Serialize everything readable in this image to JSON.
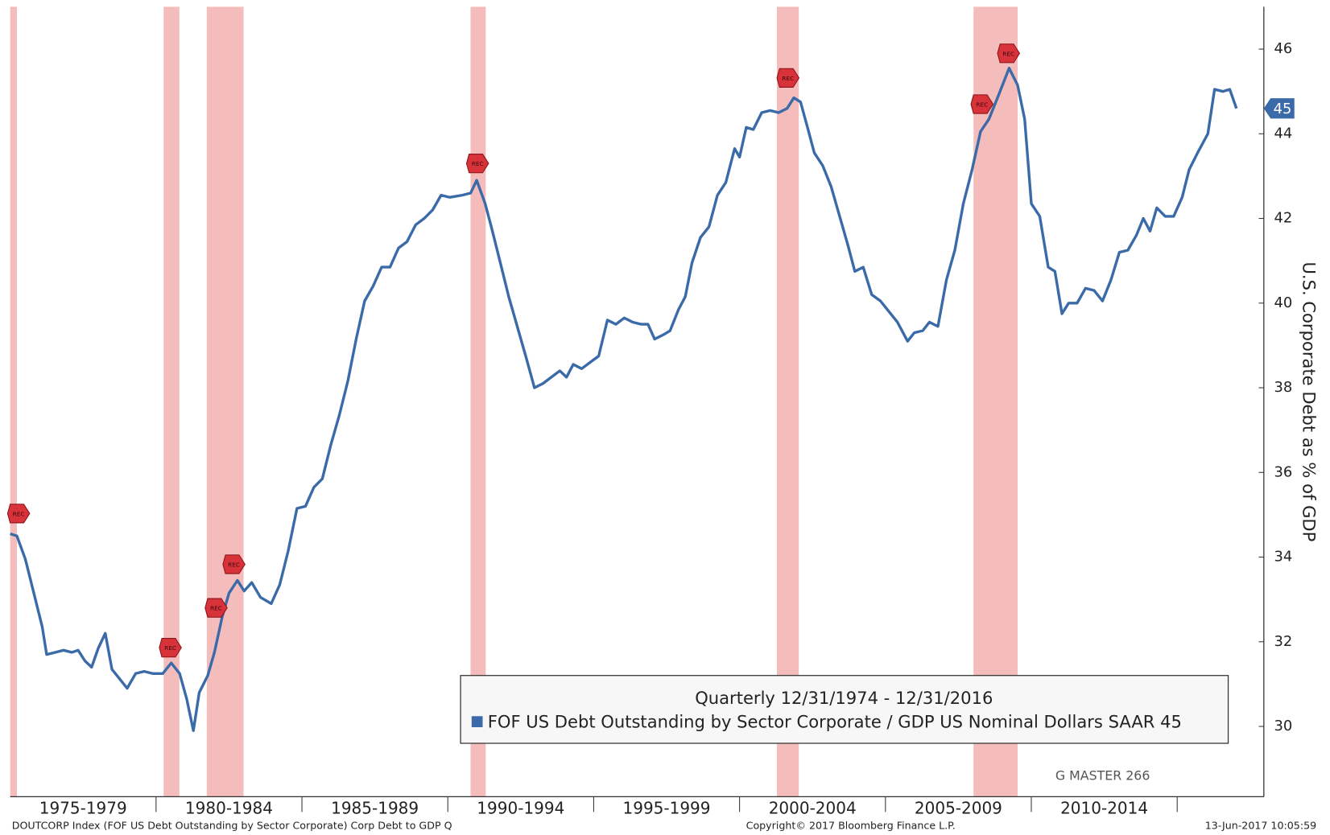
{
  "chart_data": {
    "type": "line",
    "y_axis_label": "U.S. Corporate Debt as % of GDP",
    "legend_title": "Quarterly 12/31/1974 - 12/31/2016",
    "last_label": "45",
    "marker_label": "REC",
    "watermark": "G MASTER 266",
    "footer_left": "DOUTCORP Index (FOF US Debt Outstanding by Sector Corporate) Corp Debt to GDP  Q",
    "footer_center": "Copyright© 2017 Bloomberg Finance L.P.",
    "footer_right": "13-Jun-2017 10:05:59",
    "xlim": [
      1975,
      2017.97
    ],
    "ylim": [
      28.34,
      47.0
    ],
    "yticks": [
      30,
      32,
      34,
      36,
      38,
      40,
      42,
      44,
      46
    ],
    "xticks": [
      1980,
      1985,
      1990,
      1995,
      2000,
      2005,
      2010,
      2015
    ],
    "periods": [
      {
        "label": "1975-1979",
        "from": 1975,
        "to": 1980
      },
      {
        "label": "1980-1984",
        "from": 1980,
        "to": 1985
      },
      {
        "label": "1985-1989",
        "from": 1985,
        "to": 1990
      },
      {
        "label": "1990-1994",
        "from": 1990,
        "to": 1995
      },
      {
        "label": "1995-1999",
        "from": 1995,
        "to": 2000
      },
      {
        "label": "2000-2004",
        "from": 2000,
        "to": 2005
      },
      {
        "label": "2005-2009",
        "from": 2005,
        "to": 2010
      },
      {
        "label": "2010-2014",
        "from": 2010,
        "to": 2015
      }
    ],
    "recessions": [
      [
        1975.0,
        1975.23
      ],
      [
        1980.26,
        1980.8
      ],
      [
        1981.74,
        1983.0
      ],
      [
        1990.78,
        1991.3
      ],
      [
        2001.28,
        2002.03
      ],
      [
        2008.02,
        2009.53
      ]
    ],
    "recession_color": "#f5bcbc",
    "markers": [
      {
        "x": 1975.29,
        "y": 35.03
      },
      {
        "x": 1980.49,
        "y": 31.86
      },
      {
        "x": 1982.06,
        "y": 32.8
      },
      {
        "x": 1982.67,
        "y": 33.83
      },
      {
        "x": 1991.02,
        "y": 43.3
      },
      {
        "x": 2001.66,
        "y": 45.32
      },
      {
        "x": 2008.31,
        "y": 44.7
      },
      {
        "x": 2009.22,
        "y": 45.9
      }
    ],
    "x": [
      1975.0,
      1975.23,
      1975.52,
      1975.81,
      1976.1,
      1976.25,
      1976.54,
      1976.83,
      1977.12,
      1977.33,
      1977.56,
      1977.79,
      1978.02,
      1978.26,
      1978.49,
      1978.72,
      1979.01,
      1979.3,
      1979.59,
      1979.88,
      1980.23,
      1980.52,
      1980.81,
      1981.05,
      1981.28,
      1981.48,
      1981.77,
      1982.0,
      1982.27,
      1982.5,
      1982.79,
      1983.02,
      1983.28,
      1983.58,
      1983.95,
      1984.24,
      1984.53,
      1984.83,
      1985.12,
      1985.41,
      1985.7,
      1985.99,
      1986.28,
      1986.57,
      1986.86,
      1987.15,
      1987.44,
      1987.73,
      1988.02,
      1988.31,
      1988.6,
      1988.9,
      1989.19,
      1989.48,
      1989.77,
      1990.06,
      1990.5,
      1990.78,
      1990.99,
      1991.28,
      1991.51,
      1991.8,
      1992.09,
      1992.38,
      1992.67,
      1992.97,
      1993.26,
      1993.55,
      1993.84,
      1994.07,
      1994.3,
      1994.59,
      1994.88,
      1995.17,
      1995.47,
      1995.76,
      1996.05,
      1996.34,
      1996.63,
      1996.86,
      1997.09,
      1997.38,
      1997.62,
      1997.91,
      1998.14,
      1998.37,
      1998.66,
      1998.95,
      1999.24,
      1999.53,
      1999.83,
      2000.0,
      2000.23,
      2000.47,
      2000.76,
      2001.05,
      2001.34,
      2001.63,
      2001.86,
      2002.09,
      2002.33,
      2002.56,
      2002.85,
      2003.14,
      2003.43,
      2003.72,
      2003.95,
      2004.24,
      2004.53,
      2004.83,
      2005.12,
      2005.41,
      2005.76,
      2005.99,
      2006.28,
      2006.51,
      2006.8,
      2007.09,
      2007.38,
      2007.67,
      2007.97,
      2008.26,
      2008.55,
      2008.84,
      2009.24,
      2009.53,
      2009.77,
      2010.0,
      2010.29,
      2010.58,
      2010.81,
      2011.05,
      2011.28,
      2011.57,
      2011.86,
      2012.15,
      2012.44,
      2012.73,
      2013.02,
      2013.31,
      2013.6,
      2013.84,
      2014.07,
      2014.3,
      2014.59,
      2014.88,
      2015.17,
      2015.41,
      2015.7,
      2016.05,
      2016.28,
      2016.57,
      2016.8,
      2017.03
    ],
    "series": [
      {
        "name": "FOF US Debt Outstanding by Sector Corporate / GDP US Nominal Dollars SAAR 45",
        "color": "#3a6aa8",
        "values": [
          34.55,
          34.5,
          33.95,
          33.15,
          32.35,
          31.7,
          31.75,
          31.8,
          31.75,
          31.8,
          31.55,
          31.4,
          31.85,
          32.2,
          31.35,
          31.15,
          30.9,
          31.25,
          31.3,
          31.25,
          31.25,
          31.5,
          31.25,
          30.65,
          29.9,
          30.8,
          31.2,
          31.75,
          32.6,
          33.15,
          33.45,
          33.2,
          33.4,
          33.05,
          32.9,
          33.35,
          34.15,
          35.15,
          35.2,
          35.65,
          35.85,
          36.65,
          37.35,
          38.15,
          39.15,
          40.05,
          40.4,
          40.85,
          40.85,
          41.3,
          41.45,
          41.85,
          42.0,
          42.2,
          42.55,
          42.5,
          42.55,
          42.6,
          42.9,
          42.35,
          41.75,
          40.95,
          40.15,
          39.45,
          38.75,
          38.0,
          38.1,
          38.25,
          38.4,
          38.25,
          38.55,
          38.45,
          38.6,
          38.75,
          39.6,
          39.5,
          39.65,
          39.55,
          39.5,
          39.5,
          39.15,
          39.25,
          39.35,
          39.85,
          40.15,
          40.95,
          41.55,
          41.8,
          42.55,
          42.85,
          43.65,
          43.45,
          44.15,
          44.1,
          44.5,
          44.55,
          44.5,
          44.6,
          44.85,
          44.75,
          44.15,
          43.55,
          43.25,
          42.75,
          42.05,
          41.35,
          40.75,
          40.85,
          40.2,
          40.05,
          39.8,
          39.55,
          39.1,
          39.3,
          39.35,
          39.55,
          39.45,
          40.55,
          41.25,
          42.35,
          43.15,
          44.05,
          44.35,
          44.85,
          45.55,
          45.15,
          44.35,
          42.35,
          42.05,
          40.85,
          40.75,
          39.75,
          40.0,
          40.0,
          40.35,
          40.3,
          40.05,
          40.55,
          41.2,
          41.25,
          41.6,
          42.0,
          41.7,
          42.25,
          42.05,
          42.05,
          42.5,
          43.15,
          43.55,
          44.0,
          45.05,
          45.0,
          45.05,
          44.6
        ]
      }
    ]
  }
}
